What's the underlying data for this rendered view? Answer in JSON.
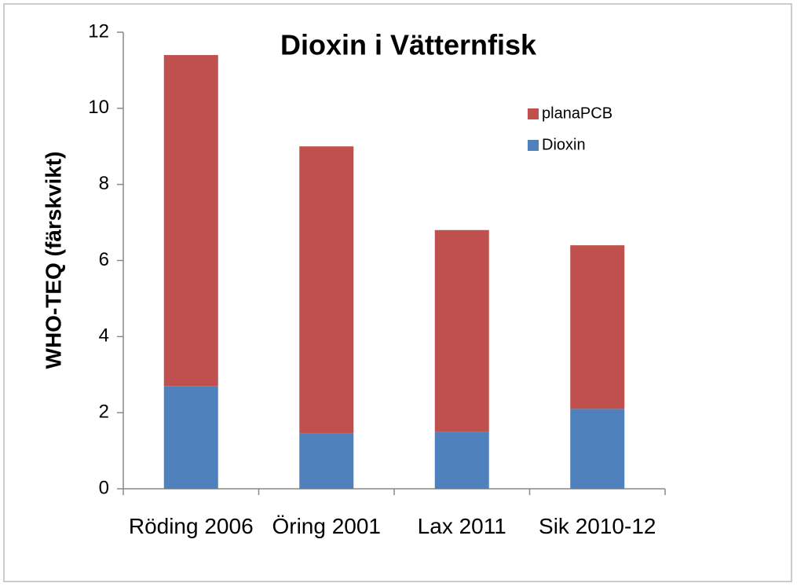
{
  "chart_data": {
    "type": "stacked_bar",
    "title": "Dioxin i Vätternfisk",
    "y_label": "WHO-TEQ (färskvikt)",
    "categories": [
      "Röding 2006",
      "Öring 2001",
      "Lax 2011",
      "Sik 2010-12"
    ],
    "series": [
      {
        "name": "Dioxin",
        "color": "#4f81bd",
        "values": [
          2.7,
          1.45,
          1.5,
          2.1
        ]
      },
      {
        "name": "planaPCB",
        "color": "#c0504d",
        "values": [
          8.7,
          7.55,
          5.3,
          4.3
        ]
      }
    ],
    "ylim": [
      0,
      12
    ],
    "yticks": [
      0,
      2,
      4,
      6,
      8,
      10,
      12
    ],
    "legend": "upper right"
  }
}
